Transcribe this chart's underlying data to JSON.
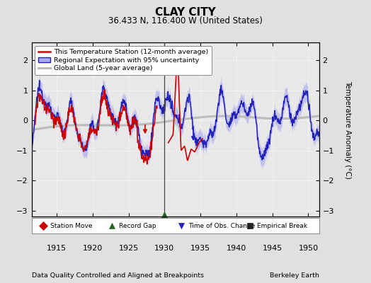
{
  "title": "CLAY CITY",
  "subtitle": "36.433 N, 116.400 W (United States)",
  "xlabel_left": "Data Quality Controlled and Aligned at Breakpoints",
  "xlabel_right": "Berkeley Earth",
  "ylabel": "Temperature Anomaly (°C)",
  "xlim": [
    1911.5,
    1951.5
  ],
  "ylim": [
    -3.2,
    2.6
  ],
  "yticks": [
    -3,
    -2,
    -1,
    0,
    1,
    2
  ],
  "xticks": [
    1915,
    1920,
    1925,
    1930,
    1935,
    1940,
    1945,
    1950
  ],
  "background_color": "#e0e0e0",
  "plot_bg_color": "#e8e8e8",
  "station_color": "#cc0000",
  "regional_color": "#2222bb",
  "regional_fill_color": "#aaaaee",
  "global_color": "#bbbbbb",
  "vertical_line_x": 1930.0,
  "record_gap_x": 1930.0,
  "bottom_legend": [
    {
      "label": "Station Move",
      "color": "#cc0000",
      "marker": "D"
    },
    {
      "label": "Record Gap",
      "color": "#226622",
      "marker": "^"
    },
    {
      "label": "Time of Obs. Change",
      "color": "#2222bb",
      "marker": "v"
    },
    {
      "label": "Empirical Break",
      "color": "#222222",
      "marker": "s"
    }
  ]
}
